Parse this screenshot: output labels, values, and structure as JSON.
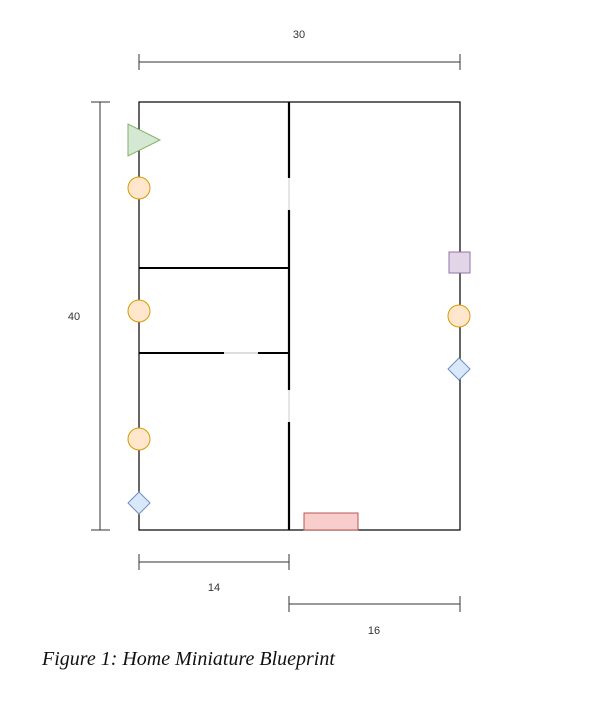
{
  "dimensions": {
    "top_width": "30",
    "left_height": "40",
    "bottom_left_width": "14",
    "bottom_right_width": "16"
  },
  "caption": "Figure 1: Home Miniature Blueprint",
  "colors": {
    "wall": "#000000",
    "dimension_line": "#333333",
    "triangle_fill": "#d5e8d4",
    "triangle_stroke": "#82b366",
    "circle_fill": "#ffe6cc",
    "circle_stroke": "#d79b00",
    "diamond_fill": "#dae8fc",
    "diamond_stroke": "#6c8ebf",
    "square_fill": "#e1d5e7",
    "square_stroke": "#9673a6",
    "rect_fill": "#f8cecc",
    "rect_stroke": "#b85450"
  }
}
